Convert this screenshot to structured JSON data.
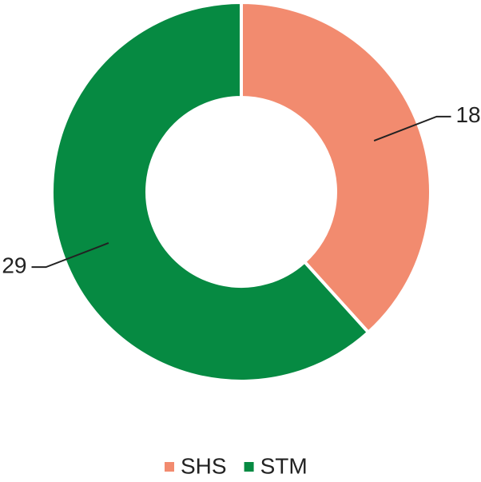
{
  "chart_data": {
    "type": "pie",
    "categories": [
      "SHS",
      "STM"
    ],
    "values": [
      18,
      29
    ],
    "colors": [
      "#f28b6f",
      "#068a42"
    ],
    "legend": "bottom"
  }
}
